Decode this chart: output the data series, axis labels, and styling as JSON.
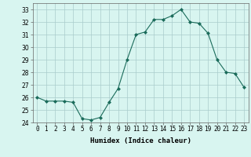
{
  "hours": [
    0,
    1,
    2,
    3,
    4,
    5,
    6,
    7,
    8,
    9,
    10,
    11,
    12,
    13,
    14,
    15,
    16,
    17,
    18,
    19,
    20,
    21,
    22,
    23
  ],
  "humidex": [
    26.0,
    25.7,
    25.7,
    25.7,
    25.6,
    24.3,
    24.2,
    24.4,
    25.6,
    26.7,
    29.0,
    31.0,
    31.2,
    32.2,
    32.2,
    32.5,
    33.0,
    32.0,
    31.9,
    31.1,
    29.0,
    28.0,
    27.9,
    26.8
  ],
  "line_color": "#1a6b5a",
  "marker": "D",
  "marker_size": 2,
  "bg_color": "#d8f5f0",
  "grid_color": "#aacccc",
  "xlabel": "Humidex (Indice chaleur)",
  "ylabel": "",
  "xlim": [
    -0.5,
    23.5
  ],
  "ylim": [
    24,
    33.5
  ],
  "yticks": [
    24,
    25,
    26,
    27,
    28,
    29,
    30,
    31,
    32,
    33
  ],
  "xtick_labels": [
    "0",
    "1",
    "2",
    "3",
    "4",
    "5",
    "6",
    "7",
    "8",
    "9",
    "10",
    "11",
    "12",
    "13",
    "14",
    "15",
    "16",
    "17",
    "18",
    "19",
    "20",
    "21",
    "22",
    "23"
  ],
  "label_fontsize": 6.5,
  "tick_fontsize": 5.5
}
